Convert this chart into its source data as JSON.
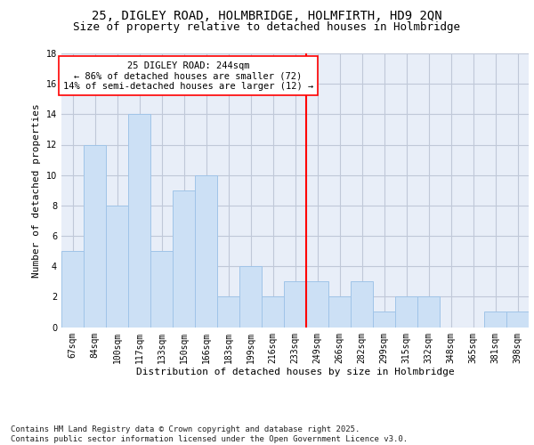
{
  "title1": "25, DIGLEY ROAD, HOLMBRIDGE, HOLMFIRTH, HD9 2QN",
  "title2": "Size of property relative to detached houses in Holmbridge",
  "xlabel": "Distribution of detached houses by size in Holmbridge",
  "ylabel": "Number of detached properties",
  "categories": [
    "67sqm",
    "84sqm",
    "100sqm",
    "117sqm",
    "133sqm",
    "150sqm",
    "166sqm",
    "183sqm",
    "199sqm",
    "216sqm",
    "233sqm",
    "249sqm",
    "266sqm",
    "282sqm",
    "299sqm",
    "315sqm",
    "332sqm",
    "348sqm",
    "365sqm",
    "381sqm",
    "398sqm"
  ],
  "values": [
    5,
    12,
    8,
    14,
    5,
    9,
    10,
    2,
    4,
    2,
    3,
    3,
    2,
    3,
    1,
    2,
    2,
    0,
    0,
    1,
    1
  ],
  "bar_color": "#cce0f5",
  "bar_edge_color": "#a0c4e8",
  "grid_color": "#c0c8d8",
  "vline_x_index": 11,
  "vline_color": "red",
  "annotation_text": "25 DIGLEY ROAD: 244sqm\n← 86% of detached houses are smaller (72)\n14% of semi-detached houses are larger (12) →",
  "annotation_box_color": "white",
  "annotation_box_edge_color": "red",
  "footnote": "Contains HM Land Registry data © Crown copyright and database right 2025.\nContains public sector information licensed under the Open Government Licence v3.0.",
  "ylim": [
    0,
    18
  ],
  "yticks": [
    0,
    2,
    4,
    6,
    8,
    10,
    12,
    14,
    16,
    18
  ],
  "bg_color": "#e8eef8",
  "title1_fontsize": 10,
  "title2_fontsize": 9,
  "xlabel_fontsize": 8,
  "ylabel_fontsize": 8,
  "tick_fontsize": 7,
  "annotation_fontsize": 7.5,
  "footnote_fontsize": 6.5
}
